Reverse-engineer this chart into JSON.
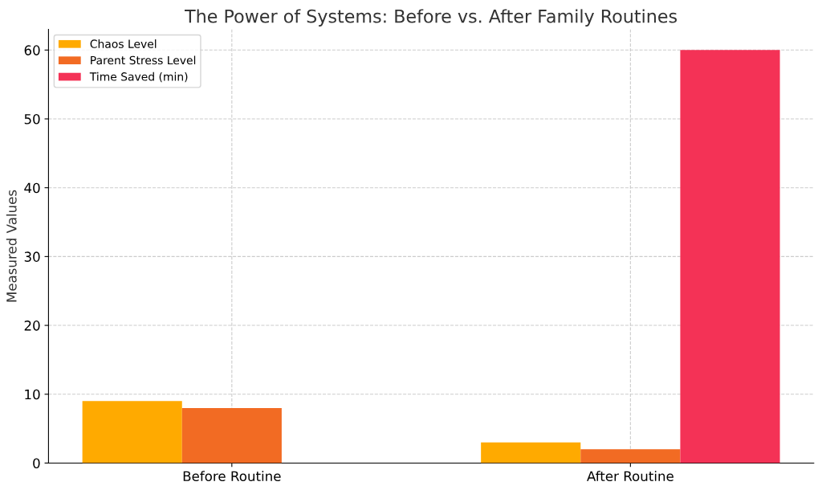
{
  "chart_data": {
    "type": "bar",
    "title": "The Power of Systems: Before vs. After Family Routines",
    "ylabel": "Measured Values",
    "categories": [
      "Before Routine",
      "After Routine"
    ],
    "series": [
      {
        "name": "Chaos Level",
        "color": "#ffaa00",
        "values": [
          9,
          3
        ]
      },
      {
        "name": "Parent Stress Level",
        "color": "#f26b23",
        "values": [
          8,
          2
        ]
      },
      {
        "name": "Time Saved (min)",
        "color": "#f43256",
        "values": [
          0,
          60
        ]
      }
    ],
    "ylim": [
      0,
      63
    ],
    "yticks": [
      0,
      10,
      20,
      30,
      40,
      50,
      60
    ],
    "grid": true,
    "legend": "top left"
  }
}
